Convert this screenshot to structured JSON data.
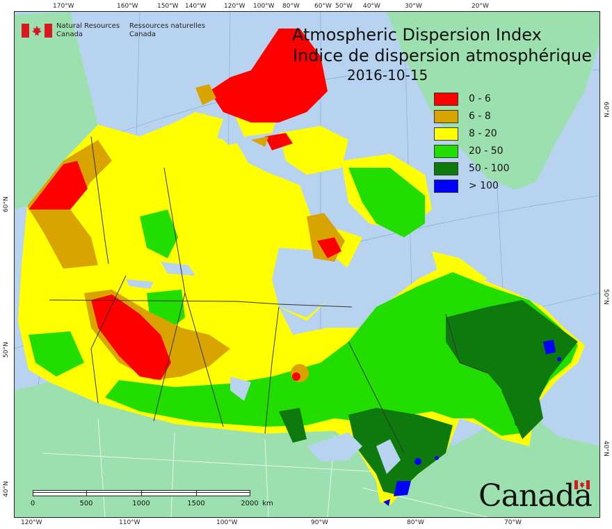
{
  "agency": {
    "name_en_line1": "Natural Resources",
    "name_en_line2": "Canada",
    "name_fr_line1": "Ressources naturelles",
    "name_fr_line2": "Canada",
    "wordmark": "Canada",
    "flag_color": "#d71920"
  },
  "map": {
    "title_en": "Atmospheric Dispersion Index",
    "title_fr": "Indice de dispersion atmosphérique",
    "date": "2016-10-15",
    "colors": {
      "ocean": "#b8d3ef",
      "foreign_land": "#9de0b0",
      "greenland": "#9de0b0",
      "boundary": "#333333"
    },
    "legend": [
      {
        "label": "0 - 6",
        "color": "#ff0000"
      },
      {
        "label": "6 - 8",
        "color": "#d9a300"
      },
      {
        "label": "8 - 20",
        "color": "#ffff00"
      },
      {
        "label": "20 - 50",
        "color": "#22dd00"
      },
      {
        "label": "50 - 100",
        "color": "#0e7a0e"
      },
      {
        "label": "> 100",
        "color": "#0000ff"
      }
    ],
    "top_ticks": [
      "170°W",
      "160°W",
      "150°W",
      "140°W",
      "120°W",
      "100°W",
      "80°W",
      "60°W",
      "50°W",
      "40°W",
      "30°W",
      "20°W"
    ],
    "bottom_ticks": [
      "120°W",
      "110°W",
      "100°W",
      "90°W",
      "80°W",
      "70°W"
    ],
    "left_ticks": [
      "60°N",
      "50°N",
      "40°N"
    ],
    "right_ticks": [
      "60°N",
      "50°N",
      "40°N"
    ],
    "scale": {
      "labels": [
        "0",
        "500",
        "1000",
        "1500",
        "2000"
      ],
      "unit": "km"
    }
  }
}
